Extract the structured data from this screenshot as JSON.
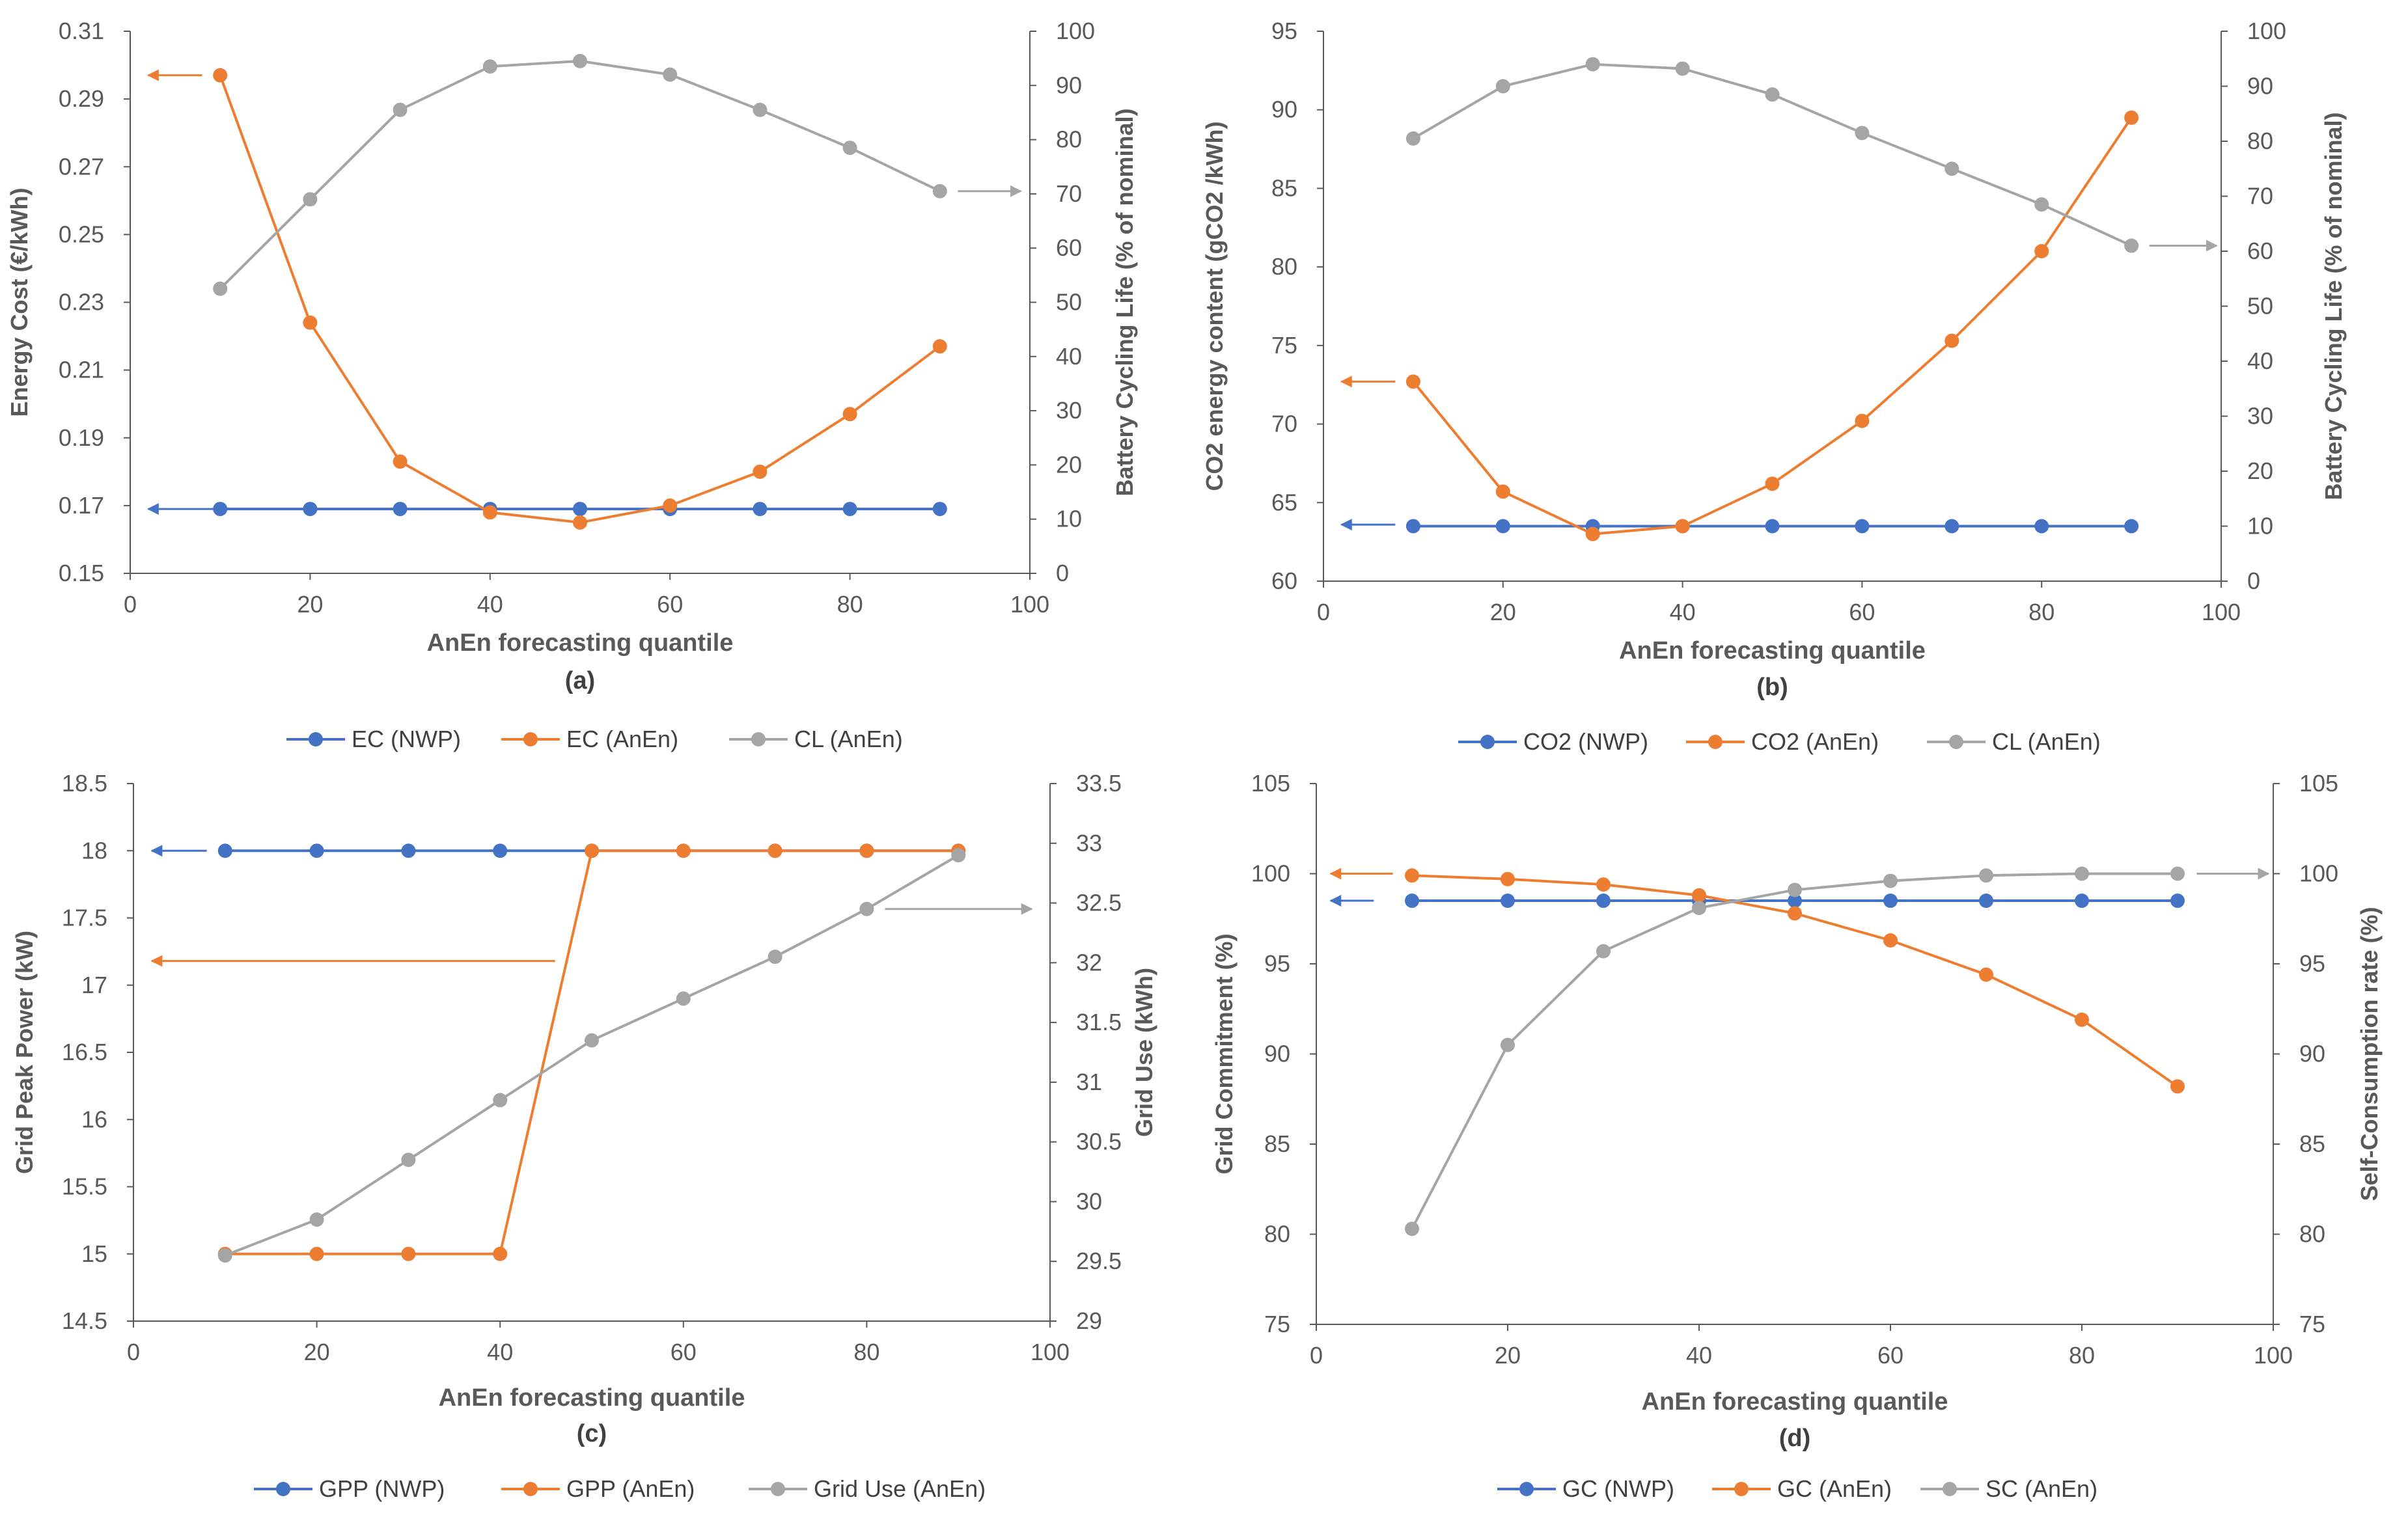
{
  "colors": {
    "nwp": "#4472C4",
    "anen": "#ED7D31",
    "gray": "#A5A5A5",
    "axis": "#595959",
    "grid": "#D9D9D9"
  },
  "chart_data": [
    {
      "type": "line",
      "panel_label": "(a)",
      "xlabel": "AnEn forecasting quantile",
      "ylabel_left": "Energy Cost (€/kWh)",
      "ylabel_right": "Battery Cycling Life (% of nominal)",
      "xlim": [
        0,
        100
      ],
      "ylim_left": [
        0.15,
        0.31
      ],
      "ylim_right": [
        0,
        100
      ],
      "x_ticks": [
        "0",
        "20",
        "40",
        "60",
        "80",
        "100"
      ],
      "yl_ticks": [
        "0.15",
        "0.17",
        "0.19",
        "0.21",
        "0.23",
        "0.25",
        "0.27",
        "0.29",
        "0.31"
      ],
      "yr_ticks": [
        "0",
        "10",
        "20",
        "30",
        "40",
        "50",
        "60",
        "70",
        "80",
        "90",
        "100"
      ],
      "x": [
        10,
        20,
        30,
        40,
        50,
        60,
        70,
        80,
        90
      ],
      "series": [
        {
          "name": "EC (NWP)",
          "axis": "left",
          "color": "nwp",
          "values": [
            0.169,
            0.169,
            0.169,
            0.169,
            0.169,
            0.169,
            0.169,
            0.169,
            0.169
          ]
        },
        {
          "name": "EC (AnEn)",
          "axis": "left",
          "color": "anen",
          "values": [
            0.297,
            0.224,
            0.183,
            0.168,
            0.165,
            0.17,
            0.18,
            0.197,
            0.217
          ]
        },
        {
          "name": "CL (AnEn)",
          "axis": "right",
          "color": "gray",
          "values": [
            52.5,
            69,
            85.5,
            93.5,
            94.5,
            92,
            85.5,
            78.5,
            70.5
          ]
        }
      ],
      "arrows": [
        {
          "color": "nwp",
          "dir": "left",
          "axis": "left",
          "y": 0.169,
          "x_from": 10,
          "x_to": 2
        },
        {
          "color": "anen",
          "dir": "left",
          "axis": "left",
          "y": 0.297,
          "x_from": 8,
          "x_to": 2
        },
        {
          "color": "gray",
          "dir": "right",
          "axis": "right",
          "y": 70.5,
          "x_from": 92,
          "x_to": 99
        }
      ],
      "legend": [
        "EC (NWP)",
        "EC (AnEn)",
        "CL (AnEn)"
      ]
    },
    {
      "type": "line",
      "panel_label": "(b)",
      "xlabel": "AnEn forecasting quantile",
      "ylabel_left": "CO2 energy content (gCO2 /kWh)",
      "ylabel_right": "Battery Cycling Life (% of nominal)",
      "xlim": [
        0,
        100
      ],
      "ylim_left": [
        60,
        95
      ],
      "ylim_right": [
        0,
        100
      ],
      "x_ticks": [
        "0",
        "20",
        "40",
        "60",
        "80",
        "100"
      ],
      "yl_ticks": [
        "60",
        "65",
        "70",
        "75",
        "80",
        "85",
        "90",
        "95"
      ],
      "yr_ticks": [
        "0",
        "10",
        "20",
        "30",
        "40",
        "50",
        "60",
        "70",
        "80",
        "90",
        "100"
      ],
      "x": [
        10,
        20,
        30,
        40,
        50,
        60,
        70,
        80,
        90
      ],
      "series": [
        {
          "name": "CO2 (NWP)",
          "axis": "left",
          "color": "nwp",
          "values": [
            63.5,
            63.5,
            63.5,
            63.5,
            63.5,
            63.5,
            63.5,
            63.5,
            63.5
          ]
        },
        {
          "name": "CO2 (AnEn)",
          "axis": "left",
          "color": "anen",
          "values": [
            72.7,
            65.7,
            63.0,
            63.5,
            66.2,
            70.2,
            75.3,
            81.0,
            89.5
          ]
        },
        {
          "name": "CL (AnEn)",
          "axis": "right",
          "color": "gray",
          "values": [
            80.5,
            90,
            94,
            93.2,
            88.5,
            81.5,
            75,
            68.5,
            61
          ]
        }
      ],
      "arrows": [
        {
          "color": "nwp",
          "dir": "left",
          "axis": "left",
          "y": 63.6,
          "x_from": 8,
          "x_to": 2
        },
        {
          "color": "anen",
          "dir": "left",
          "axis": "left",
          "y": 72.7,
          "x_from": 8,
          "x_to": 2
        },
        {
          "color": "gray",
          "dir": "right",
          "axis": "right",
          "y": 61,
          "x_from": 92,
          "x_to": 99.5
        }
      ],
      "legend": [
        "CO2 (NWP)",
        "CO2 (AnEn)",
        "CL (AnEn)"
      ]
    },
    {
      "type": "line",
      "panel_label": "(c)",
      "xlabel": "AnEn forecasting quantile",
      "ylabel_left": "Grid Peak Power (kW)",
      "ylabel_right": "Grid Use (kWh)",
      "xlim": [
        0,
        100
      ],
      "ylim_left": [
        14.5,
        18.5
      ],
      "ylim_right": [
        29,
        33.5
      ],
      "x_ticks": [
        "0",
        "20",
        "40",
        "60",
        "80",
        "100"
      ],
      "yl_ticks": [
        "14.5",
        "15",
        "15.5",
        "16",
        "16.5",
        "17",
        "17.5",
        "18",
        "18.5"
      ],
      "yr_ticks": [
        "29",
        "29.5",
        "30",
        "30.5",
        "31",
        "31.5",
        "32",
        "32.5",
        "33",
        "33.5"
      ],
      "x": [
        10,
        20,
        30,
        40,
        50,
        60,
        70,
        80,
        90
      ],
      "series": [
        {
          "name": "GPP (NWP)",
          "axis": "left",
          "color": "nwp",
          "values": [
            18,
            18,
            18,
            18,
            18,
            18,
            18,
            18,
            18
          ]
        },
        {
          "name": "GPP (AnEn)",
          "axis": "left",
          "color": "anen",
          "values": [
            15,
            15,
            15,
            15,
            18,
            18,
            18,
            18,
            18
          ]
        },
        {
          "name": "Grid Use (AnEn)",
          "axis": "right",
          "color": "gray",
          "values": [
            29.55,
            29.85,
            30.35,
            30.85,
            31.35,
            31.7,
            32.05,
            32.45,
            32.9
          ]
        }
      ],
      "arrows": [
        {
          "color": "nwp",
          "dir": "left",
          "axis": "left",
          "y": 18,
          "x_from": 8,
          "x_to": 2
        },
        {
          "color": "anen",
          "dir": "left",
          "axis": "left",
          "y": 17.18,
          "x_from": 46,
          "x_to": 2
        },
        {
          "color": "gray",
          "dir": "right",
          "axis": "right",
          "y": 32.45,
          "x_from": 82,
          "x_to": 98
        }
      ],
      "legend": [
        "GPP (NWP)",
        "GPP (AnEn)",
        "Grid Use (AnEn)"
      ]
    },
    {
      "type": "line",
      "panel_label": "(d)",
      "xlabel": "AnEn forecasting quantile",
      "ylabel_left": "Grid Commitment (%)",
      "ylabel_right": "Self-Consumption rate (%)",
      "xlim": [
        0,
        100
      ],
      "ylim_left": [
        75,
        105
      ],
      "ylim_right": [
        75,
        105
      ],
      "x_ticks": [
        "0",
        "20",
        "40",
        "60",
        "80",
        "100"
      ],
      "yl_ticks": [
        "75",
        "80",
        "85",
        "90",
        "95",
        "100",
        "105"
      ],
      "yr_ticks": [
        "75",
        "80",
        "85",
        "90",
        "95",
        "100",
        "105"
      ],
      "x": [
        10,
        20,
        30,
        40,
        50,
        60,
        70,
        80,
        90
      ],
      "series": [
        {
          "name": "GC (NWP)",
          "axis": "left",
          "color": "nwp",
          "values": [
            98.5,
            98.5,
            98.5,
            98.5,
            98.5,
            98.5,
            98.5,
            98.5,
            98.5
          ]
        },
        {
          "name": "GC (AnEn)",
          "axis": "left",
          "color": "anen",
          "values": [
            99.9,
            99.7,
            99.4,
            98.8,
            97.8,
            96.3,
            94.4,
            91.9,
            88.2
          ]
        },
        {
          "name": "SC (AnEn)",
          "axis": "right",
          "color": "gray",
          "values": [
            80.3,
            90.5,
            95.7,
            98.1,
            99.1,
            99.6,
            99.9,
            100,
            100
          ]
        }
      ],
      "arrows": [
        {
          "color": "nwp",
          "dir": "left",
          "axis": "left",
          "y": 98.5,
          "x_from": 6,
          "x_to": 1.5
        },
        {
          "color": "anen",
          "dir": "left",
          "axis": "left",
          "y": 100,
          "x_from": 8,
          "x_to": 1.5
        },
        {
          "color": "gray",
          "dir": "right",
          "axis": "right",
          "y": 100,
          "x_from": 92,
          "x_to": 99.5
        }
      ],
      "legend": [
        "GC (NWP)",
        "GC (AnEn)",
        "SC (AnEn)"
      ]
    }
  ]
}
